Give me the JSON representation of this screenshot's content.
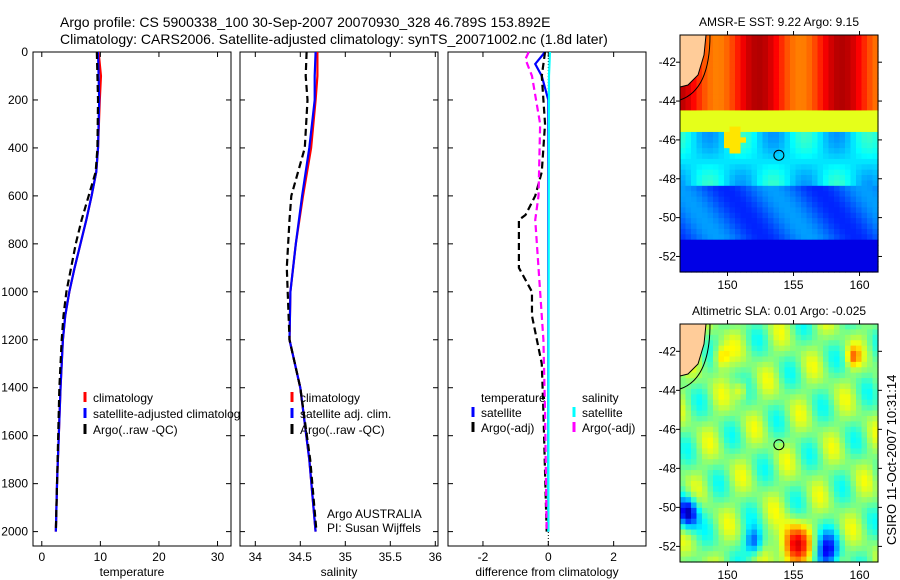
{
  "title_line1": "Argo profile: CS 5900338_100 30-Sep-2007 20070930_328 46.789S 153.892E",
  "title_line2": "Climatology: CARS2006. Satellite-adjusted climatology: synTS_20071002.nc (1.8d later)",
  "credit": "Argo AUSTRALIA",
  "pi": "PI: Susan Wijffels",
  "stamp": "CSIRO 11-Oct-2007 10:31:14",
  "colors": {
    "clim": "#ff0000",
    "sat": "#0000ff",
    "argo": "#000000",
    "sat_s": "#00ffff",
    "argo_s": "#ff00ff"
  },
  "chart_data": [
    {
      "type": "line",
      "xlabel": "temperature",
      "ylabel": "",
      "xlim": [
        -1.5,
        32.3
      ],
      "ylim": [
        0,
        2060
      ],
      "xticks": [
        0,
        10,
        20,
        30
      ],
      "yticks": [
        0,
        200,
        400,
        600,
        800,
        1000,
        1200,
        1400,
        1600,
        1800,
        2000
      ],
      "legend": [
        "climatology",
        "satellite-adjusted climatology",
        "Argo(..raw -QC)"
      ],
      "legend_placement": "lower-middle",
      "series": [
        {
          "name": "climatology",
          "color": "#ff0000",
          "depth": [
            0,
            100,
            200,
            400,
            500,
            600,
            700,
            800,
            900,
            1000,
            1100,
            1200,
            1400,
            1600,
            1800,
            2000
          ],
          "values": [
            9.7,
            10.1,
            9.9,
            9.6,
            9.3,
            8.5,
            7.6,
            6.6,
            5.6,
            4.7,
            4.0,
            3.6,
            3.2,
            2.9,
            2.6,
            2.4
          ]
        },
        {
          "name": "satellite-adjusted climatology",
          "color": "#0000ff",
          "depth": [
            0,
            100,
            200,
            400,
            500,
            600,
            700,
            800,
            900,
            1000,
            1100,
            1200,
            1400,
            1600,
            1800,
            2000
          ],
          "values": [
            9.6,
            9.7,
            9.8,
            9.6,
            9.3,
            8.5,
            7.6,
            6.6,
            5.6,
            4.7,
            4.0,
            3.6,
            3.2,
            2.9,
            2.6,
            2.4
          ]
        },
        {
          "name": "Argo(..raw -QC)",
          "color": "#000000",
          "dash": true,
          "depth": [
            0,
            100,
            200,
            400,
            500,
            600,
            700,
            800,
            900,
            1000,
            1100,
            1200,
            1400,
            1600,
            1800,
            2000
          ],
          "values": [
            9.4,
            9.5,
            9.6,
            9.5,
            9.2,
            8.0,
            6.8,
            5.8,
            5.0,
            4.2,
            3.7,
            3.4,
            3.0,
            2.8,
            2.6,
            2.4
          ]
        }
      ]
    },
    {
      "type": "line",
      "xlabel": "salinity",
      "ylabel": "",
      "xlim": [
        33.83,
        36.03
      ],
      "ylim": [
        0,
        2060
      ],
      "xticks": [
        34,
        34.5,
        35,
        35.5,
        36
      ],
      "legend": [
        "climatology",
        "satellite adj. clim.",
        "Argo(..raw -QC)"
      ],
      "legend_placement": "lower-middle",
      "series": [
        {
          "name": "climatology",
          "color": "#ff0000",
          "depth": [
            0,
            100,
            200,
            400,
            600,
            800,
            1000,
            1200,
            1400,
            1700,
            2000
          ],
          "values": [
            34.69,
            34.69,
            34.67,
            34.62,
            34.53,
            34.45,
            34.39,
            34.38,
            34.5,
            34.6,
            34.67
          ]
        },
        {
          "name": "satellite adj. clim.",
          "color": "#0000ff",
          "depth": [
            0,
            100,
            200,
            400,
            600,
            800,
            1000,
            1200,
            1400,
            1700,
            2000
          ],
          "values": [
            34.67,
            34.66,
            34.66,
            34.6,
            34.52,
            34.45,
            34.39,
            34.38,
            34.5,
            34.6,
            34.67
          ]
        },
        {
          "name": "Argo(..raw -QC)",
          "color": "#000000",
          "dash": true,
          "depth": [
            0,
            100,
            200,
            400,
            600,
            700,
            900,
            1000,
            1200,
            1400,
            1700,
            2000
          ],
          "values": [
            34.57,
            34.56,
            34.58,
            34.55,
            34.4,
            34.38,
            34.35,
            34.36,
            34.38,
            34.5,
            34.61,
            34.68
          ]
        }
      ]
    },
    {
      "type": "line",
      "xlabel": "difference from climatology",
      "ylabel": "",
      "xlim": [
        -3.07,
        2.99
      ],
      "ylim": [
        0,
        2060
      ],
      "xticks": [
        -2,
        0,
        2
      ],
      "legend": {
        "temperature": [
          "satellite",
          "Argo(-adj)"
        ],
        "salinity": [
          "satellite",
          "Argo(-adj)"
        ]
      },
      "legend_placement": "lower-middle",
      "legend_headers": [
        "temperature",
        "salinity"
      ],
      "series": [
        {
          "name": "temperature satellite",
          "color": "#0000ff",
          "depth": [
            0,
            50,
            100,
            200,
            400,
            2000
          ],
          "values": [
            -0.1,
            -0.4,
            -0.2,
            0,
            0,
            0
          ]
        },
        {
          "name": "temperature Argo(-adj)",
          "color": "#000000",
          "dash": true,
          "depth": [
            0,
            100,
            300,
            500,
            600,
            680,
            700,
            900,
            1000,
            1100,
            1300,
            1500,
            2000
          ],
          "values": [
            -0.1,
            -0.2,
            -0.1,
            -0.2,
            -0.4,
            -0.7,
            -0.9,
            -0.9,
            -0.5,
            -0.5,
            -0.2,
            -0.15,
            -0.05
          ]
        },
        {
          "name": "salinity satellite",
          "color": "#00ffff",
          "depth": [
            0,
            100,
            2000
          ],
          "values": [
            0.05,
            0.02,
            0
          ]
        },
        {
          "name": "salinity Argo(-adj)",
          "color": "#ff00ff",
          "dash": true,
          "depth": [
            0,
            30,
            100,
            300,
            600,
            700,
            900,
            1200,
            1500,
            2000
          ],
          "values": [
            -0.6,
            -0.7,
            -0.5,
            -0.25,
            -0.3,
            -0.4,
            -0.3,
            -0.15,
            -0.1,
            -0.05
          ]
        }
      ]
    },
    {
      "type": "heatmap",
      "title": "AMSR-E SST: 9.22 Argo: 9.15",
      "xlim": [
        146.4,
        161.4
      ],
      "ylim": [
        -52.8,
        -40.6
      ],
      "xticks": [
        150,
        155,
        160
      ],
      "yticks": [
        -42,
        -44,
        -46,
        -48,
        -50,
        -52
      ],
      "marker": {
        "lon": 153.892,
        "lat": -46.789
      }
    },
    {
      "type": "heatmap",
      "title": "Altimetric SLA: 0.01 Argo: -0.025",
      "xlim": [
        146.4,
        161.4
      ],
      "ylim": [
        -52.8,
        -40.6
      ],
      "xticks": [
        150,
        155,
        160
      ],
      "yticks": [
        -42,
        -44,
        -46,
        -48,
        -50,
        -52
      ],
      "marker": {
        "lon": 153.892,
        "lat": -46.789
      }
    }
  ]
}
